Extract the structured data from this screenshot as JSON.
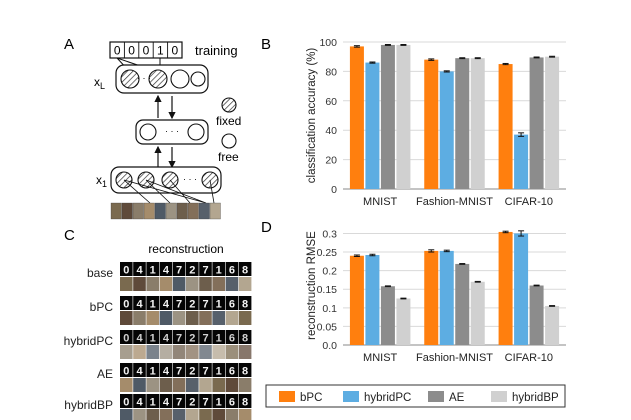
{
  "panels": {
    "A": {
      "letter": "A",
      "label_digits": [
        "0",
        "0",
        "0",
        "1",
        "0"
      ],
      "training_label": "training",
      "layer_top": "x",
      "layer_top_sub": "L",
      "layer_bottom": "x",
      "layer_bottom_sub": "1",
      "legend_fixed": "fixed",
      "legend_free": "free",
      "dots": "· · ·"
    },
    "B": {
      "letter": "B"
    },
    "C": {
      "letter": "C",
      "title": "reconstruction",
      "rows": [
        "base",
        "bPC",
        "hybridPC",
        "AE",
        "hybridBP"
      ],
      "digit_glyphs": [
        "0",
        "4",
        "1",
        "4",
        "7",
        "2",
        "7",
        "1",
        "6",
        "8"
      ]
    },
    "D": {
      "letter": "D"
    }
  },
  "legend": {
    "items": [
      {
        "label": "bPC",
        "color": "#FF7F0E"
      },
      {
        "label": "hybridPC",
        "color": "#5DADE2"
      },
      {
        "label": "AE",
        "color": "#8C8C8C"
      },
      {
        "label": "hybridBP",
        "color": "#D0D0D0"
      }
    ]
  },
  "chart_data": [
    {
      "panel": "B",
      "type": "bar",
      "categories": [
        "MNIST",
        "Fashion-MNIST",
        "CIFAR-10"
      ],
      "ylabel": "classification accuracy (%)",
      "ylim": [
        0,
        100
      ],
      "yticks": [
        "0",
        "20",
        "40",
        "60",
        "80",
        "100"
      ],
      "grid": "horizontal",
      "series": [
        {
          "name": "bPC",
          "values": [
            97,
            88,
            85
          ],
          "errors": [
            0.5,
            0.5,
            0.4
          ]
        },
        {
          "name": "hybridPC",
          "values": [
            86,
            80,
            37
          ],
          "errors": [
            0.4,
            0.4,
            1.2
          ]
        },
        {
          "name": "AE",
          "values": [
            98,
            89,
            89.5
          ],
          "errors": [
            0.3,
            0.3,
            0.3
          ]
        },
        {
          "name": "hybridBP",
          "values": [
            98,
            89,
            90
          ],
          "errors": [
            0.3,
            0.3,
            0.3
          ]
        }
      ]
    },
    {
      "panel": "D",
      "type": "bar",
      "categories": [
        "MNIST",
        "Fashion-MNIST",
        "CIFAR-10"
      ],
      "ylabel": "reconstruction RMSE",
      "ylim": [
        0,
        0.32
      ],
      "yticks": [
        "0.0",
        "0.05",
        "0.1",
        "0.15",
        "0.2",
        "0.25",
        "0.3"
      ],
      "grid": "horizontal",
      "series": [
        {
          "name": "bPC",
          "values": [
            0.24,
            0.253,
            0.304
          ],
          "errors": [
            0.002,
            0.003,
            0.002
          ]
        },
        {
          "name": "hybridPC",
          "values": [
            0.242,
            0.253,
            0.3
          ],
          "errors": [
            0.002,
            0.002,
            0.007
          ]
        },
        {
          "name": "AE",
          "values": [
            0.158,
            0.218,
            0.16
          ],
          "errors": [
            0.001,
            0.001,
            0.001
          ]
        },
        {
          "name": "hybridBP",
          "values": [
            0.125,
            0.17,
            0.105
          ],
          "errors": [
            0.001,
            0.001,
            0.001
          ]
        }
      ]
    }
  ]
}
